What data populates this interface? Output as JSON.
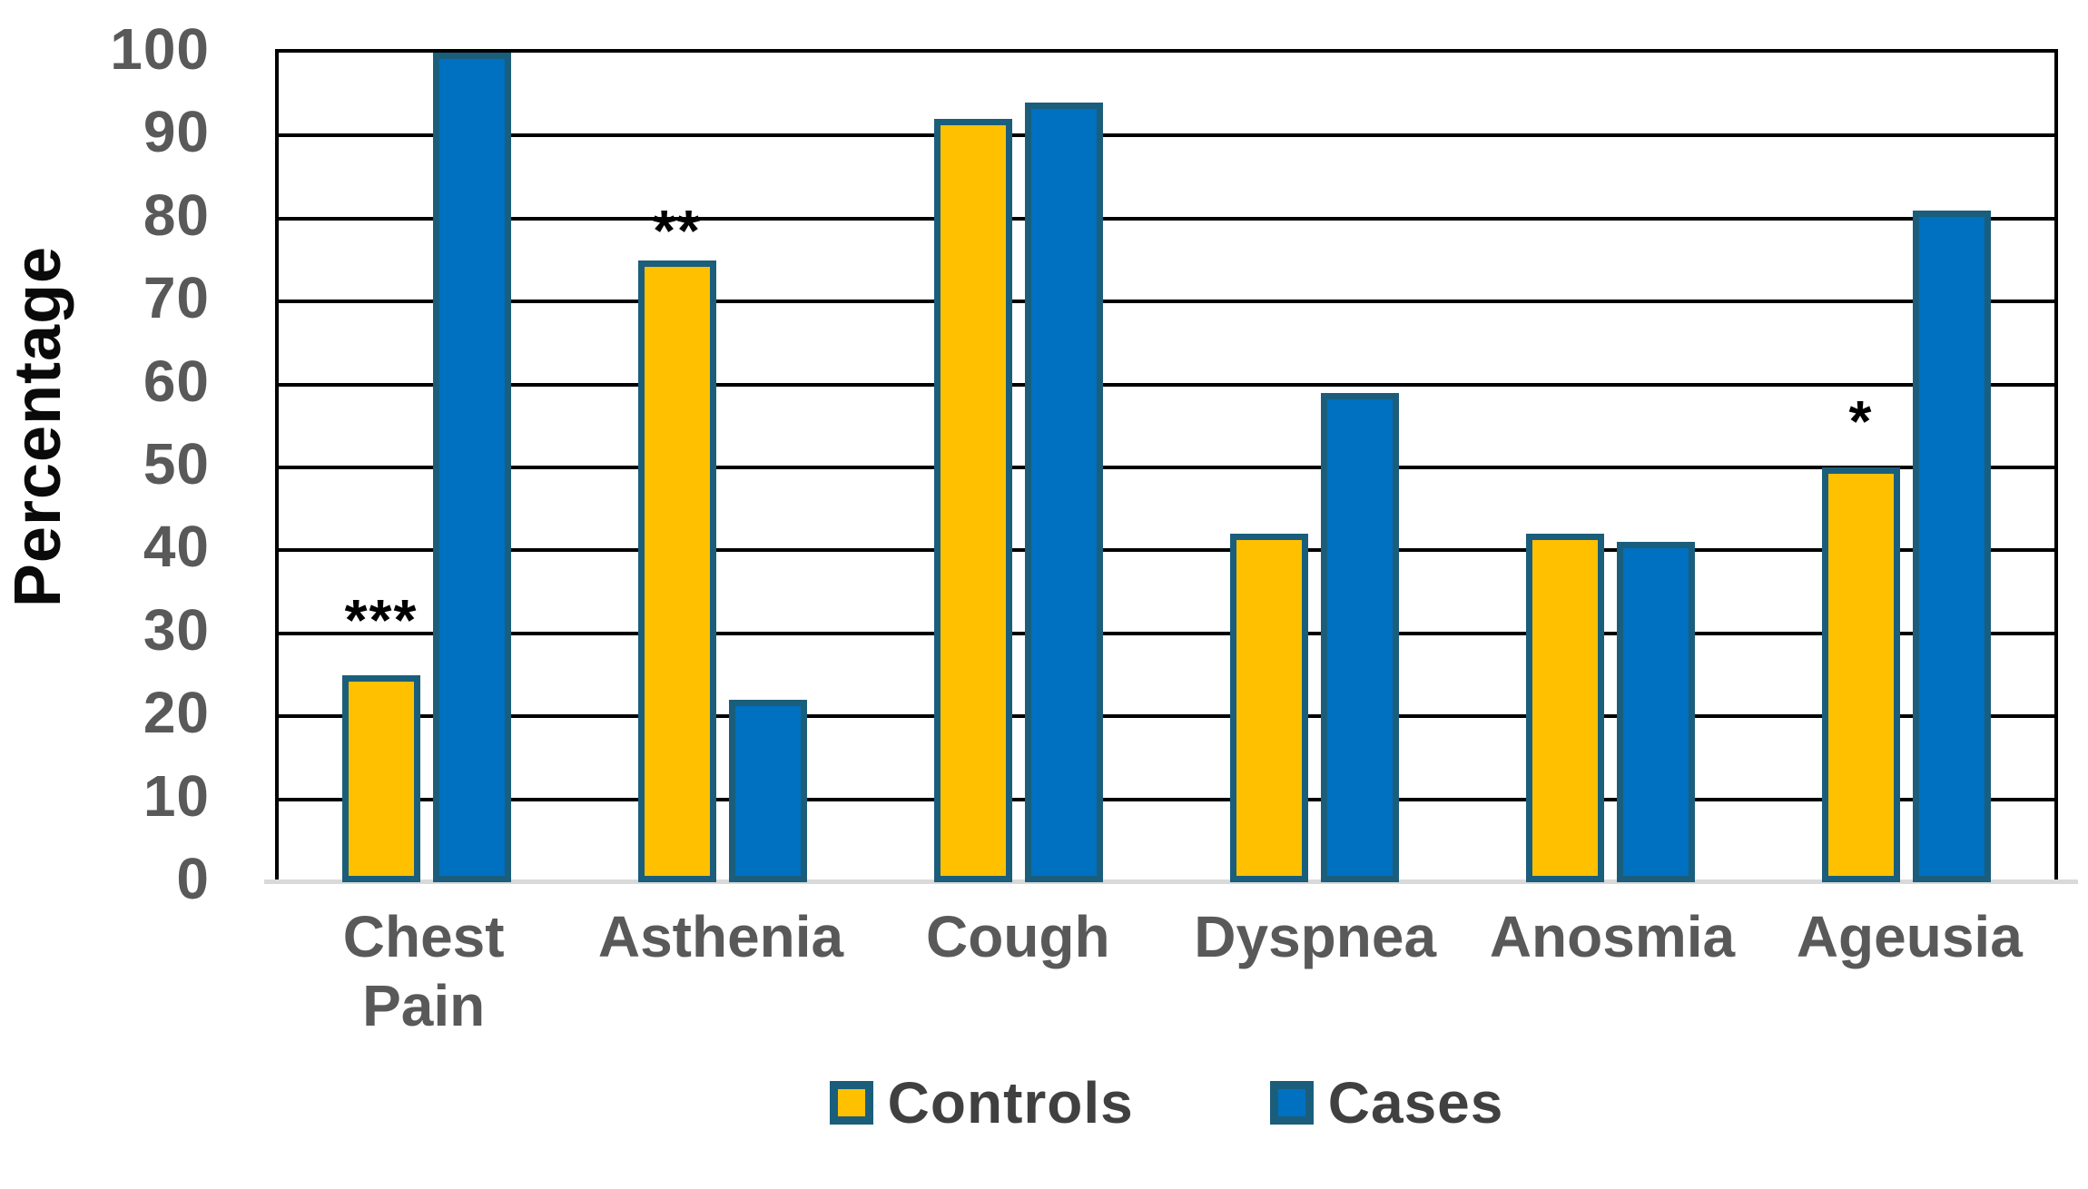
{
  "chart_data": {
    "type": "bar",
    "title": "",
    "xlabel": "",
    "ylabel": "Percentage",
    "categories": [
      "Chest Pain",
      "Asthenia",
      "Cough",
      "Dyspnea",
      "Anosmia",
      "Ageusia"
    ],
    "series": [
      {
        "name": "Controls",
        "color": "#FFC000",
        "values": [
          25,
          75,
          92,
          42,
          42,
          50
        ]
      },
      {
        "name": "Cases",
        "color": "#0070C0",
        "values": [
          100,
          22,
          94,
          59,
          41,
          81
        ]
      }
    ],
    "annotations": [
      {
        "text": "***",
        "category_index": 0,
        "series_index": 0,
        "y": 33
      },
      {
        "text": "**",
        "category_index": 1,
        "series_index": 0,
        "y": 80
      },
      {
        "text": "*",
        "category_index": 5,
        "series_index": 0,
        "y": 57
      }
    ],
    "ylim": [
      0,
      100
    ],
    "yticks": [
      0,
      10,
      20,
      30,
      40,
      50,
      60,
      70,
      80,
      90,
      100
    ],
    "grid": "horizontal",
    "gridline_color": "#000000",
    "baseline_color": "#D9D9D9",
    "bar_border_color": "#1B5E7C",
    "legend_position": "bottom"
  }
}
